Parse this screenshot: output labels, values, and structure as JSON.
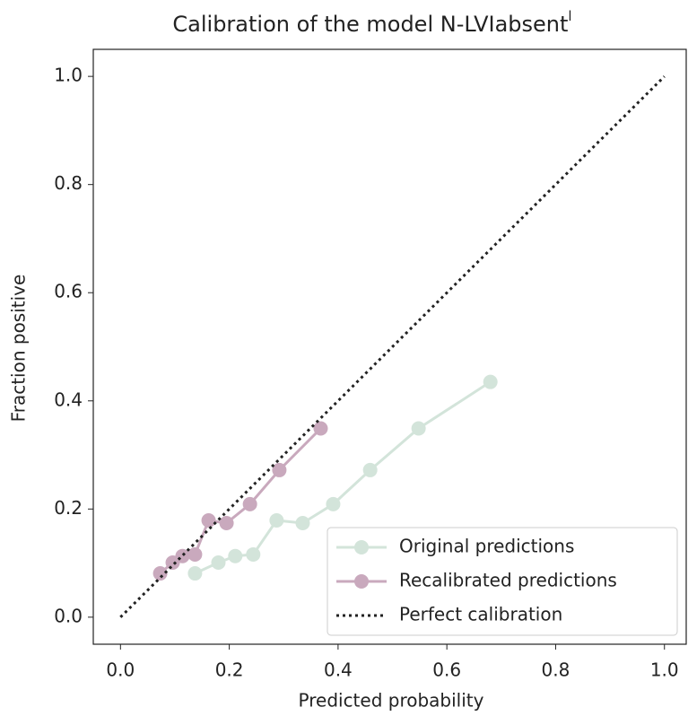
{
  "chart_data": {
    "type": "line",
    "title": "Calibration of the model N-LVIabsent",
    "title_superscript": "l",
    "x_label": "Predicted probability",
    "y_label": "Fraction positive",
    "xlim": [
      -0.05,
      1.04
    ],
    "ylim": [
      -0.05,
      1.05
    ],
    "xticks": [
      {
        "value": 0,
        "label": "0.0"
      },
      {
        "value": 0.2,
        "label": "0.2"
      },
      {
        "value": 0.4,
        "label": "0.4"
      },
      {
        "value": 0.6,
        "label": "0.6"
      },
      {
        "value": 0.8,
        "label": "0.8"
      },
      {
        "value": 1,
        "label": "1.0"
      }
    ],
    "yticks": [
      {
        "value": 0,
        "label": "0.0"
      },
      {
        "value": 0.2,
        "label": "0.2"
      },
      {
        "value": 0.4,
        "label": "0.4"
      },
      {
        "value": 0.6,
        "label": "0.6"
      },
      {
        "value": 0.8,
        "label": "0.8"
      },
      {
        "value": 1,
        "label": "1.0"
      }
    ],
    "legend": "lower right",
    "series": [
      {
        "name": "Original predictions",
        "color": "#d3e4da",
        "style": "solid-marker",
        "x": [
          0.137,
          0.18,
          0.211,
          0.244,
          0.287,
          0.335,
          0.391,
          0.459,
          0.548,
          0.68
        ],
        "values": [
          0.081,
          0.101,
          0.113,
          0.116,
          0.179,
          0.174,
          0.209,
          0.272,
          0.349,
          0.435
        ]
      },
      {
        "name": "Recalibrated predictions",
        "color": "#c9a9bd",
        "style": "solid-marker",
        "x": [
          0.073,
          0.096,
          0.114,
          0.137,
          0.162,
          0.195,
          0.238,
          0.292,
          0.368
        ],
        "values": [
          0.081,
          0.101,
          0.113,
          0.116,
          0.179,
          0.174,
          0.209,
          0.272,
          0.349
        ]
      },
      {
        "name": "Perfect calibration",
        "color": "#222222",
        "style": "dotted",
        "x": [
          0,
          1
        ],
        "values": [
          0,
          1
        ]
      }
    ]
  }
}
